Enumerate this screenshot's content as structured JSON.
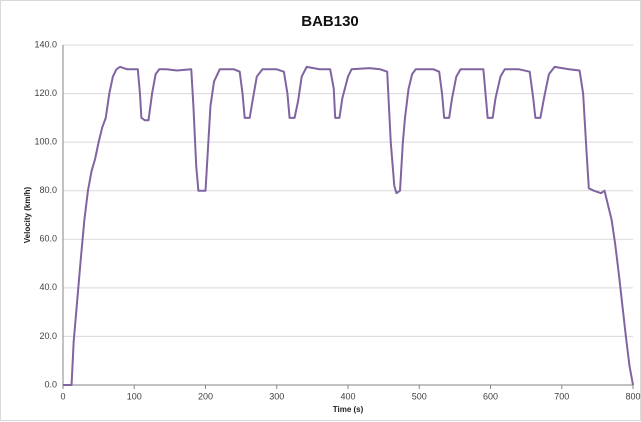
{
  "chart_data": {
    "type": "line",
    "title": "BAB130",
    "x_label": "Time (s)",
    "y_label": "Velocity (km/h)",
    "color": "#8064a2",
    "grid": true,
    "xlim": [
      0,
      800
    ],
    "xticks": [
      0,
      100,
      200,
      300,
      400,
      500,
      600,
      700,
      800
    ],
    "ylim": [
      0,
      140
    ],
    "yticks": [
      {
        "value": 0,
        "label": "0.0"
      },
      {
        "value": 20,
        "label": "20.0"
      },
      {
        "value": 40,
        "label": "40.0"
      },
      {
        "value": 60,
        "label": "60.0"
      },
      {
        "value": 80,
        "label": "80.0"
      },
      {
        "value": 100,
        "label": "100.0"
      },
      {
        "value": 120,
        "label": "120.0"
      },
      {
        "value": 140,
        "label": "140.0"
      }
    ],
    "x": [
      0,
      12,
      15,
      20,
      25,
      30,
      35,
      40,
      45,
      50,
      55,
      60,
      65,
      70,
      75,
      80,
      90,
      105,
      108,
      110,
      115,
      120,
      125,
      130,
      135,
      145,
      160,
      180,
      183,
      187,
      190,
      200,
      203,
      207,
      212,
      220,
      240,
      248,
      252,
      255,
      262,
      266,
      272,
      280,
      300,
      310,
      315,
      318,
      325,
      330,
      335,
      342,
      360,
      375,
      380,
      382,
      388,
      392,
      400,
      405,
      430,
      445,
      455,
      460,
      465,
      468,
      473,
      477,
      480,
      485,
      490,
      495,
      520,
      528,
      532,
      535,
      542,
      546,
      552,
      558,
      580,
      590,
      593,
      596,
      603,
      607,
      614,
      620,
      640,
      655,
      660,
      663,
      670,
      675,
      682,
      690,
      710,
      725,
      730,
      735,
      738,
      745,
      755,
      760,
      765,
      770,
      775,
      780,
      785,
      790,
      795,
      800
    ],
    "values": [
      0,
      0,
      18,
      35,
      52,
      68,
      80,
      88,
      93,
      100,
      106,
      110,
      120,
      127,
      130,
      131,
      130,
      130,
      120,
      110,
      109,
      109,
      120,
      128,
      130,
      130,
      129.5,
      130,
      115,
      90,
      80,
      80,
      95,
      115,
      125,
      130,
      130,
      129,
      120,
      110,
      110,
      117,
      127,
      130,
      130,
      129,
      120,
      110,
      110,
      117,
      127,
      131,
      130,
      130,
      122,
      110,
      110,
      118,
      127,
      130,
      130.5,
      130,
      129,
      100,
      82,
      79,
      80,
      100,
      110,
      122,
      128,
      130,
      130,
      129,
      120,
      110,
      110,
      118,
      127,
      130,
      130,
      130,
      120,
      110,
      110,
      118,
      127,
      130,
      130,
      129,
      118,
      110,
      110,
      118,
      128,
      131,
      130,
      129.5,
      120,
      95,
      81,
      80,
      79,
      80,
      74,
      68,
      58,
      46,
      33,
      20,
      8,
      0
    ]
  }
}
